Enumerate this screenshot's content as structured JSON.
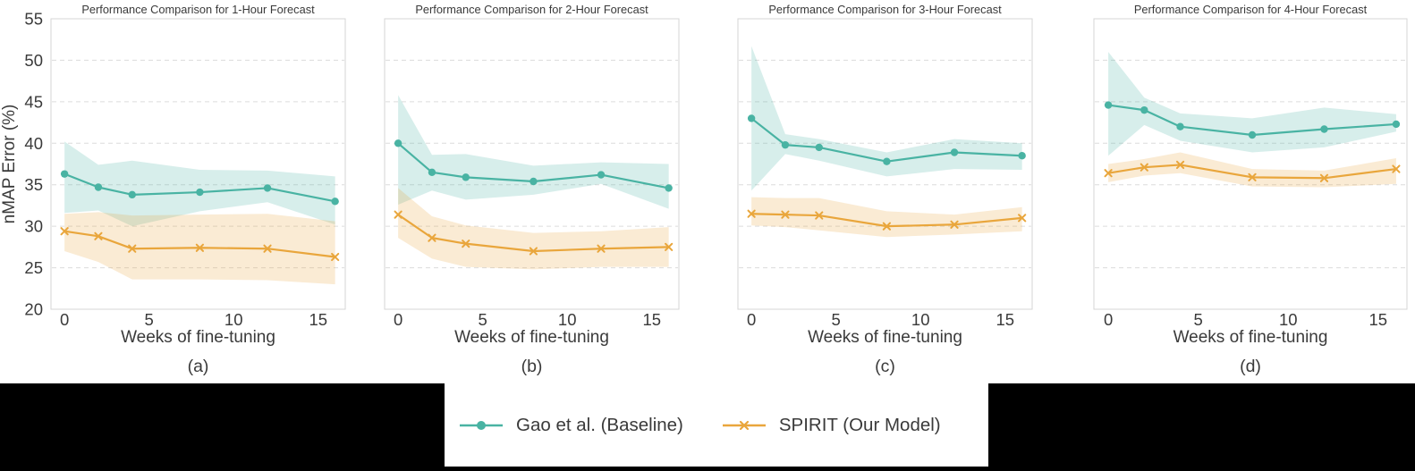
{
  "figure": {
    "background": "#ffffff",
    "footer_background": "#000000",
    "text_color": "#3a3a3a",
    "axis_border_color": "#d5d5d5",
    "grid_color": "#dcdcdc",
    "teal": "#49b3a3",
    "orange": "#e9a63c"
  },
  "legend": {
    "items": [
      {
        "label": "Gao et al. (Baseline)",
        "color": "#49b3a3",
        "marker": "circle"
      },
      {
        "label": "SPIRIT (Our Model)",
        "color": "#e9a63c",
        "marker": "x"
      }
    ]
  },
  "chart_data": [
    {
      "type": "line",
      "title": "Performance Comparison for 1-Hour Forecast",
      "panel_label": "(a)",
      "xlabel": "Weeks of fine-tuning",
      "ylabel": "nMAP Error (%)",
      "show_y_axis_labels": true,
      "x": [
        0,
        2,
        4,
        8,
        12,
        16
      ],
      "xticks": [
        0,
        5,
        10,
        15
      ],
      "yticks": [
        55,
        50,
        45,
        40,
        35,
        30,
        25,
        20
      ],
      "xlim": [
        -0.8,
        16.6
      ],
      "ylim": [
        20,
        55
      ],
      "grid": true,
      "series": [
        {
          "name": "Gao et al. (Baseline)",
          "color": "#49b3a3",
          "marker": "circle",
          "values": [
            36.3,
            34.7,
            33.8,
            34.1,
            34.6,
            33.0
          ],
          "band_upper": [
            40.2,
            37.4,
            37.9,
            36.8,
            36.7,
            36.0
          ],
          "band_lower": [
            31.6,
            31.9,
            30.0,
            31.8,
            32.9,
            30.2
          ]
        },
        {
          "name": "SPIRIT (Our Model)",
          "color": "#e9a63c",
          "marker": "x",
          "values": [
            29.4,
            28.8,
            27.3,
            27.4,
            27.3,
            26.3
          ],
          "band_upper": [
            31.5,
            31.7,
            31.3,
            31.4,
            31.5,
            30.6
          ],
          "band_lower": [
            27.0,
            25.7,
            23.6,
            23.6,
            23.5,
            23.0
          ]
        }
      ]
    },
    {
      "type": "line",
      "title": "Performance Comparison for 2-Hour Forecast",
      "panel_label": "(b)",
      "xlabel": "Weeks of fine-tuning",
      "ylabel": "nMAP Error (%)",
      "show_y_axis_labels": false,
      "x": [
        0,
        2,
        4,
        8,
        12,
        16
      ],
      "xticks": [
        0,
        5,
        10,
        15
      ],
      "yticks": [
        55,
        50,
        45,
        40,
        35,
        30,
        25,
        20
      ],
      "xlim": [
        -0.8,
        16.6
      ],
      "ylim": [
        20,
        55
      ],
      "grid": true,
      "series": [
        {
          "name": "Gao et al. (Baseline)",
          "color": "#49b3a3",
          "marker": "circle",
          "values": [
            40.0,
            36.5,
            35.9,
            35.4,
            36.2,
            34.6
          ],
          "band_upper": [
            45.8,
            38.6,
            38.7,
            37.3,
            37.7,
            37.5
          ],
          "band_lower": [
            32.6,
            34.3,
            33.2,
            33.8,
            35.1,
            32.1
          ]
        },
        {
          "name": "SPIRIT (Our Model)",
          "color": "#e9a63c",
          "marker": "x",
          "values": [
            31.4,
            28.6,
            27.9,
            27.0,
            27.3,
            27.5
          ],
          "band_upper": [
            34.6,
            31.2,
            30.1,
            29.2,
            29.4,
            29.9
          ],
          "band_lower": [
            28.6,
            26.1,
            25.1,
            24.8,
            25.1,
            25.1
          ]
        }
      ]
    },
    {
      "type": "line",
      "title": "Performance Comparison for 3-Hour Forecast",
      "panel_label": "(c)",
      "xlabel": "Weeks of fine-tuning",
      "ylabel": "nMAP Error (%)",
      "show_y_axis_labels": false,
      "x": [
        0,
        2,
        4,
        8,
        12,
        16
      ],
      "xticks": [
        0,
        5,
        10,
        15
      ],
      "yticks": [
        55,
        50,
        45,
        40,
        35,
        30,
        25,
        20
      ],
      "xlim": [
        -0.8,
        16.6
      ],
      "ylim": [
        20,
        55
      ],
      "grid": true,
      "series": [
        {
          "name": "Gao et al. (Baseline)",
          "color": "#49b3a3",
          "marker": "circle",
          "values": [
            43.0,
            39.8,
            39.5,
            37.8,
            38.9,
            38.5
          ],
          "band_upper": [
            51.7,
            41.1,
            40.5,
            38.9,
            40.5,
            40.0
          ],
          "band_lower": [
            34.3,
            38.7,
            37.9,
            36.0,
            36.9,
            36.8
          ]
        },
        {
          "name": "SPIRIT (Our Model)",
          "color": "#e9a63c",
          "marker": "x",
          "values": [
            31.5,
            31.4,
            31.3,
            30.0,
            30.2,
            31.0
          ],
          "band_upper": [
            33.5,
            33.4,
            33.4,
            31.8,
            31.4,
            32.3
          ],
          "band_lower": [
            30.1,
            29.9,
            29.5,
            28.7,
            29.0,
            29.4
          ]
        }
      ]
    },
    {
      "type": "line",
      "title": "Performance Comparison for 4-Hour Forecast",
      "panel_label": "(d)",
      "xlabel": "Weeks of fine-tuning",
      "ylabel": "nMAP Error (%)",
      "show_y_axis_labels": false,
      "x": [
        0,
        2,
        4,
        8,
        12,
        16
      ],
      "xticks": [
        0,
        5,
        10,
        15
      ],
      "yticks": [
        55,
        50,
        45,
        40,
        35,
        30,
        25,
        20
      ],
      "xlim": [
        -0.8,
        16.6
      ],
      "ylim": [
        20,
        55
      ],
      "grid": true,
      "series": [
        {
          "name": "Gao et al. (Baseline)",
          "color": "#49b3a3",
          "marker": "circle",
          "values": [
            44.6,
            44.0,
            42.0,
            41.0,
            41.7,
            42.3
          ],
          "band_upper": [
            51.0,
            45.5,
            43.6,
            43.0,
            44.3,
            43.5
          ],
          "band_lower": [
            38.5,
            42.2,
            40.3,
            38.9,
            39.5,
            41.4
          ]
        },
        {
          "name": "SPIRIT (Our Model)",
          "color": "#e9a63c",
          "marker": "x",
          "values": [
            36.4,
            37.1,
            37.4,
            35.9,
            35.8,
            36.9
          ],
          "band_upper": [
            37.5,
            38.1,
            38.9,
            36.9,
            36.7,
            38.2
          ],
          "band_lower": [
            35.3,
            36.1,
            36.4,
            34.8,
            34.7,
            35.1
          ]
        }
      ]
    }
  ]
}
